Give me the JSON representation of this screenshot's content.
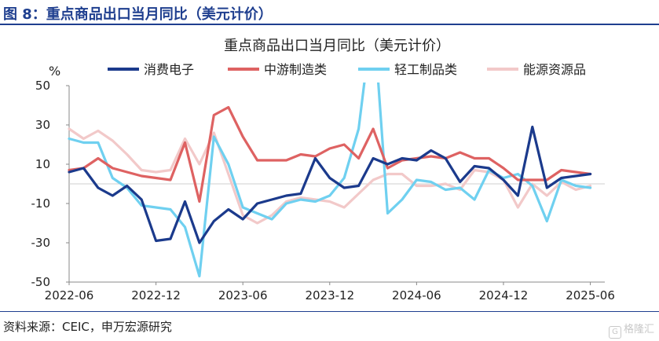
{
  "figure": {
    "label": "图 8：重点商品出口当月同比（美元计价）",
    "source": "资料来源：CEIC，申万宏源研究",
    "watermark": "格隆汇",
    "watermark_icon": "G"
  },
  "colors": {
    "frame": "#1f3f8f",
    "series": [
      "#1b3a8c",
      "#de6262",
      "#6fd0f0",
      "#f2c9c9"
    ]
  },
  "chart_data": {
    "type": "line",
    "title": "重点商品出口当月同比（美元计价）",
    "unit_label": "%",
    "ylim": [
      -50,
      50
    ],
    "yticks": [
      50,
      30,
      10,
      -10,
      -30,
      -50
    ],
    "xlim": [
      "2022-06",
      "2025-07"
    ],
    "xtick_labels": [
      "2022-06",
      "2022-12",
      "2023-06",
      "2023-12",
      "2024-06",
      "2024-12",
      "2025-06"
    ],
    "grid": false,
    "legend": "top",
    "x": [
      "2022-06",
      "2022-07",
      "2022-08",
      "2022-09",
      "2022-10",
      "2022-11",
      "2022-12",
      "2023-01",
      "2023-02",
      "2023-03",
      "2023-04",
      "2023-05",
      "2023-06",
      "2023-07",
      "2023-08",
      "2023-09",
      "2023-10",
      "2023-11",
      "2023-12",
      "2024-01",
      "2024-02",
      "2024-03",
      "2024-04",
      "2024-05",
      "2024-06",
      "2024-07",
      "2024-08",
      "2024-09",
      "2024-10",
      "2024-11",
      "2024-12",
      "2025-01",
      "2025-02",
      "2025-03",
      "2025-04",
      "2025-05",
      "2025-06"
    ],
    "series": [
      {
        "name": "消费电子",
        "values": [
          6,
          8,
          -2,
          -6,
          -1,
          -8,
          -29,
          -28,
          -9,
          -30,
          -19,
          -13,
          -18,
          -10,
          -8,
          -6,
          -5,
          13,
          3,
          -2,
          -1,
          13,
          10,
          13,
          12,
          17,
          13,
          1,
          9,
          8,
          2,
          -6,
          29,
          -2,
          3,
          4,
          5
        ]
      },
      {
        "name": "中游制造类",
        "values": [
          7,
          8,
          13,
          8,
          6,
          4,
          3,
          2,
          21,
          -9,
          35,
          39,
          24,
          12,
          12,
          12,
          15,
          14,
          18,
          20,
          13,
          28,
          8,
          12,
          13,
          14,
          13,
          16,
          13,
          13,
          8,
          2,
          2,
          2,
          7,
          6,
          5
        ]
      },
      {
        "name": "轻工制品类",
        "values": [
          23,
          21,
          21,
          3,
          -2,
          -11,
          -12,
          -13,
          -22,
          -47,
          24,
          10,
          -12,
          -15,
          -18,
          -10,
          -8,
          -9,
          -6,
          3,
          28,
          88,
          -15,
          -8,
          2,
          1,
          -3,
          -2,
          -8,
          7,
          3,
          5,
          -1,
          -19,
          2,
          -1,
          -2
        ]
      },
      {
        "name": "能源资源品",
        "values": [
          28,
          23,
          27,
          22,
          15,
          7,
          6,
          7,
          23,
          10,
          26,
          5,
          -16,
          -20,
          -16,
          -9,
          -7,
          -8,
          -9,
          -12,
          -5,
          2,
          5,
          5,
          -1,
          -1,
          0,
          -3,
          7,
          6,
          2,
          -12,
          0,
          -6,
          1,
          -3,
          -1
        ]
      }
    ]
  }
}
